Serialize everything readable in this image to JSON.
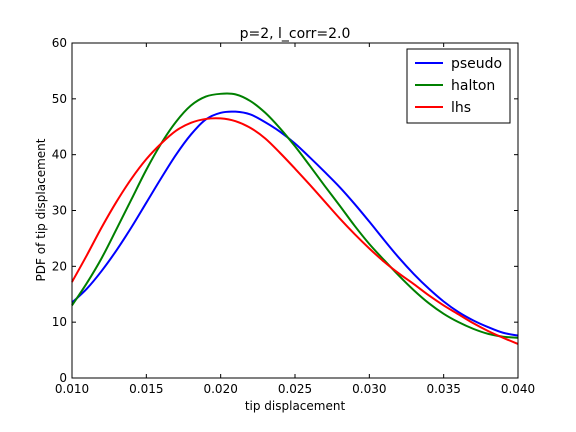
{
  "chart_data": {
    "type": "line",
    "title": "p=2, l_corr=2.0",
    "xlabel": "tip displacement",
    "ylabel": "PDF of tip displacement",
    "xlim": [
      0.01,
      0.04
    ],
    "ylim": [
      0,
      60
    ],
    "xticks": [
      "0.010",
      "0.015",
      "0.020",
      "0.025",
      "0.030",
      "0.035",
      "0.040"
    ],
    "yticks": [
      "0",
      "10",
      "20",
      "30",
      "40",
      "50",
      "60"
    ],
    "grid": false,
    "legend_position": "top-right",
    "series": [
      {
        "name": "pseudo",
        "color": "#0000ff",
        "x": [
          0.01,
          0.011,
          0.012,
          0.013,
          0.014,
          0.015,
          0.016,
          0.017,
          0.018,
          0.019,
          0.02,
          0.021,
          0.022,
          0.023,
          0.024,
          0.025,
          0.026,
          0.027,
          0.028,
          0.029,
          0.03,
          0.031,
          0.032,
          0.033,
          0.034,
          0.035,
          0.036,
          0.037,
          0.038,
          0.039,
          0.04
        ],
        "y": [
          13.5,
          16.0,
          19.2,
          22.9,
          27.0,
          31.4,
          35.8,
          40.0,
          43.6,
          46.3,
          47.5,
          47.7,
          47.2,
          45.8,
          44.1,
          42.0,
          39.5,
          36.9,
          34.2,
          31.2,
          28.0,
          24.7,
          21.5,
          18.6,
          16.0,
          13.7,
          11.8,
          10.3,
          9.1,
          8.1,
          7.6
        ]
      },
      {
        "name": "halton",
        "color": "#008000",
        "x": [
          0.01,
          0.011,
          0.012,
          0.013,
          0.014,
          0.015,
          0.016,
          0.017,
          0.018,
          0.019,
          0.02,
          0.021,
          0.022,
          0.023,
          0.024,
          0.025,
          0.026,
          0.027,
          0.028,
          0.029,
          0.03,
          0.031,
          0.032,
          0.033,
          0.034,
          0.035,
          0.036,
          0.037,
          0.038,
          0.039,
          0.04
        ],
        "y": [
          13.0,
          17.0,
          21.5,
          26.7,
          32.0,
          37.3,
          42.0,
          45.9,
          48.8,
          50.4,
          50.9,
          50.8,
          49.6,
          47.5,
          44.7,
          41.5,
          38.0,
          34.4,
          30.9,
          27.3,
          24.0,
          21.1,
          18.3,
          15.7,
          13.4,
          11.5,
          10.0,
          8.8,
          7.9,
          7.4,
          7.2
        ]
      },
      {
        "name": "lhs",
        "color": "#ff0000",
        "x": [
          0.01,
          0.011,
          0.012,
          0.013,
          0.014,
          0.015,
          0.016,
          0.017,
          0.018,
          0.019,
          0.02,
          0.021,
          0.022,
          0.023,
          0.024,
          0.025,
          0.026,
          0.027,
          0.028,
          0.029,
          0.03,
          0.031,
          0.032,
          0.033,
          0.034,
          0.035,
          0.036,
          0.037,
          0.038,
          0.039,
          0.04
        ],
        "y": [
          17.2,
          22.0,
          27.0,
          31.6,
          35.7,
          39.2,
          42.0,
          44.3,
          45.7,
          46.4,
          46.5,
          46.0,
          44.8,
          42.9,
          40.3,
          37.5,
          34.6,
          31.6,
          28.6,
          25.8,
          23.2,
          20.8,
          18.7,
          16.8,
          14.8,
          13.0,
          11.4,
          9.8,
          8.4,
          7.2,
          6.1
        ]
      }
    ]
  }
}
